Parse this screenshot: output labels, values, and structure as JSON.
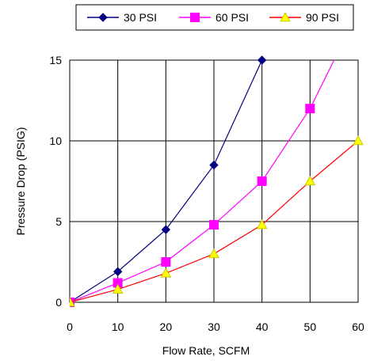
{
  "chart_data": {
    "type": "line",
    "title": "",
    "xlabel": "Flow Rate, SCFM",
    "ylabel": "Pressure Drop (PSIG)",
    "xlim": [
      0,
      60
    ],
    "ylim": [
      0,
      15
    ],
    "xticks": [
      "0",
      "10",
      "20",
      "30",
      "40",
      "50",
      "60"
    ],
    "yticks": [
      "0",
      "5",
      "10",
      "15"
    ],
    "grid": true,
    "legend_position": "top",
    "series": [
      {
        "name": "30 PSI",
        "color": "#000080",
        "marker": "diamond",
        "x": [
          0,
          10,
          20,
          30,
          40
        ],
        "y": [
          0,
          1.9,
          4.5,
          8.5,
          15
        ]
      },
      {
        "name": "60 PSI",
        "color": "#ff00ff",
        "marker": "square",
        "x": [
          0,
          10,
          20,
          30,
          40,
          50,
          55
        ],
        "y": [
          0,
          1.2,
          2.5,
          4.8,
          7.5,
          12,
          15
        ]
      },
      {
        "name": "90 PSI",
        "color": "#ff0000",
        "marker_color": "#ffff00",
        "marker": "triangle",
        "x": [
          0,
          10,
          20,
          30,
          40,
          50,
          60
        ],
        "y": [
          0,
          0.8,
          1.8,
          3.0,
          4.8,
          7.5,
          10
        ]
      }
    ]
  }
}
